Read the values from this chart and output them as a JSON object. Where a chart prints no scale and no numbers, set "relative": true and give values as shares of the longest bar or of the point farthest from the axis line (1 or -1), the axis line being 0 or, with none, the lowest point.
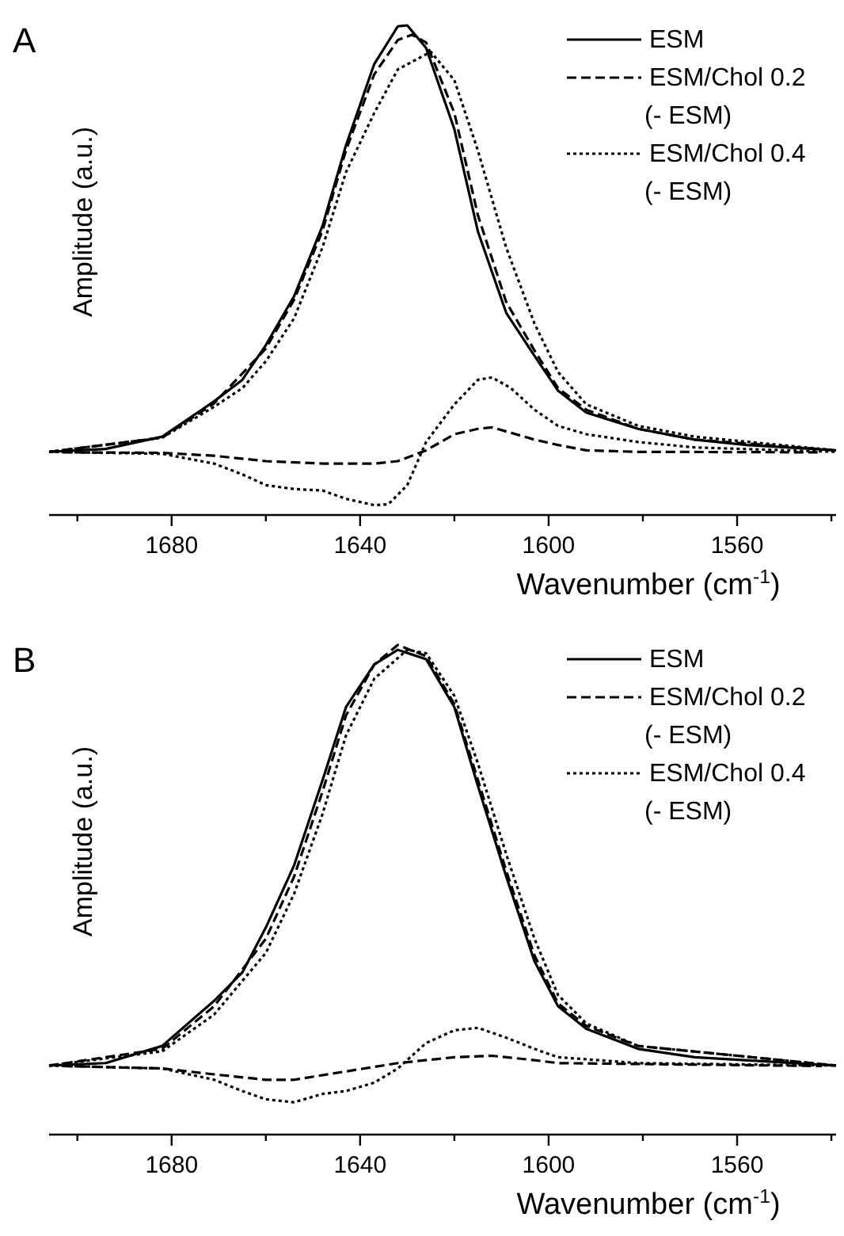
{
  "chart_data": [
    {
      "type": "line",
      "title": "A",
      "xlabel": "Wavenumber (cm$^{-1}$)",
      "ylabel": "Amplitude (a.u.)",
      "relative": true,
      "xlim": [
        1706,
        1539
      ],
      "xticks": [
        {
          "value": 1700,
          "label": null
        },
        1680,
        {
          "value": 1660,
          "label": null
        },
        1640,
        {
          "value": 1620,
          "label": null
        },
        1600,
        {
          "value": 1580,
          "label": null
        },
        1560,
        {
          "value": 1540,
          "label": null
        }
      ],
      "legend": "top right",
      "series": [
        {
          "name": "ESM",
          "color": "#000000",
          "line_style": "solid",
          "x": [
            1706,
            1694,
            1682,
            1671,
            1665,
            1660,
            1654,
            1648,
            1643,
            1637,
            1632,
            1630,
            1626,
            1620,
            1615,
            1609,
            1603,
            1598,
            1592,
            1581,
            1569,
            1558,
            1539
          ],
          "values": [
            0.129,
            0.135,
            0.16,
            0.232,
            0.276,
            0.347,
            0.447,
            0.59,
            0.755,
            0.921,
            0.998,
            1,
            0.954,
            0.788,
            0.579,
            0.413,
            0.325,
            0.254,
            0.209,
            0.176,
            0.154,
            0.143,
            0.132
          ]
        },
        {
          "name": "ESM/Chol 0.2\n(- ESM)",
          "color": "#000000",
          "line_style": "dashed",
          "x": [
            1706,
            1682,
            1671,
            1660,
            1654,
            1648,
            1643,
            1637,
            1632,
            1629,
            1626,
            1620,
            1615,
            1609,
            1603,
            1598,
            1592,
            1581,
            1569,
            1539
          ],
          "values": [
            0.129,
            0.158,
            0.228,
            0.34,
            0.44,
            0.58,
            0.745,
            0.9,
            0.97,
            0.981,
            0.965,
            0.821,
            0.612,
            0.435,
            0.336,
            0.259,
            0.215,
            0.176,
            0.154,
            0.132
          ]
        },
        {
          "name": "ESM/Chol 0.4\n(- ESM)",
          "color": "#000000",
          "line_style": "dotted",
          "x": [
            1706,
            1682,
            1671,
            1665,
            1660,
            1654,
            1648,
            1643,
            1637,
            1632,
            1625,
            1620,
            1615,
            1609,
            1603,
            1598,
            1592,
            1581,
            1569,
            1539
          ],
          "values": [
            0.129,
            0.158,
            0.221,
            0.259,
            0.314,
            0.402,
            0.546,
            0.7,
            0.821,
            0.91,
            0.946,
            0.888,
            0.744,
            0.546,
            0.391,
            0.292,
            0.226,
            0.182,
            0.16,
            0.132
          ]
        },
        {
          "color": "#000000",
          "line_style": "dashed",
          "x": [
            1703,
            1682,
            1671,
            1660,
            1648,
            1637,
            1632,
            1626,
            1620,
            1615,
            1612,
            1603,
            1598,
            1592,
            1581,
            1542
          ],
          "values": [
            0.128,
            0.127,
            0.121,
            0.11,
            0.105,
            0.105,
            0.11,
            0.132,
            0.165,
            0.176,
            0.179,
            0.154,
            0.143,
            0.132,
            0.129,
            0.128
          ]
        },
        {
          "color": "#000000",
          "line_style": "dotted",
          "x": [
            1706,
            1682,
            1671,
            1665,
            1660,
            1654,
            1648,
            1643,
            1637,
            1634,
            1630,
            1626,
            1620,
            1615,
            1612,
            1608,
            1603,
            1598,
            1592,
            1581,
            1569,
            1539
          ],
          "values": [
            0.129,
            0.125,
            0.105,
            0.083,
            0.061,
            0.053,
            0.05,
            0.033,
            0.02,
            0.022,
            0.061,
            0.149,
            0.226,
            0.276,
            0.281,
            0.259,
            0.215,
            0.182,
            0.165,
            0.149,
            0.138,
            0.129
          ]
        }
      ]
    },
    {
      "type": "line",
      "title": "B",
      "xlabel": "Wavenumber (cm$^{-1}$)",
      "ylabel": "Amplitude (a.u.)",
      "relative": true,
      "xlim": [
        1706,
        1539
      ],
      "xticks": [
        {
          "value": 1700,
          "label": null
        },
        1680,
        {
          "value": 1660,
          "label": null
        },
        1640,
        {
          "value": 1620,
          "label": null
        },
        1600,
        {
          "value": 1580,
          "label": null
        },
        1560,
        {
          "value": 1540,
          "label": null
        }
      ],
      "legend": "top right",
      "series": [
        {
          "name": "ESM",
          "color": "#000000",
          "line_style": "solid",
          "x": [
            1706,
            1694,
            1682,
            1671,
            1665,
            1660,
            1654,
            1648,
            1643,
            1637,
            1632,
            1626,
            1620,
            1615,
            1609,
            1603,
            1598,
            1592,
            1581,
            1569,
            1539
          ],
          "values": [
            0.141,
            0.146,
            0.181,
            0.273,
            0.331,
            0.423,
            0.55,
            0.723,
            0.873,
            0.96,
            0.99,
            0.971,
            0.873,
            0.712,
            0.527,
            0.354,
            0.262,
            0.216,
            0.175,
            0.158,
            0.141
          ]
        },
        {
          "name": "ESM/Chol 0.2\n(- ESM)",
          "color": "#000000",
          "line_style": "dashed",
          "x": [
            1706,
            1682,
            1671,
            1660,
            1654,
            1648,
            1643,
            1637,
            1632,
            1626,
            1620,
            1615,
            1609,
            1603,
            1598,
            1592,
            1581,
            1539
          ],
          "values": [
            0.141,
            0.175,
            0.262,
            0.4,
            0.527,
            0.7,
            0.856,
            0.96,
            1,
            0.977,
            0.879,
            0.724,
            0.539,
            0.366,
            0.268,
            0.222,
            0.181,
            0.141
          ]
        },
        {
          "name": "ESM/Chol 0.4\n(- ESM)",
          "color": "#000000",
          "line_style": "dotted",
          "x": [
            1706,
            1682,
            1671,
            1660,
            1654,
            1648,
            1643,
            1637,
            1630,
            1626,
            1620,
            1615,
            1609,
            1603,
            1598,
            1592,
            1581,
            1539
          ],
          "values": [
            0.141,
            0.17,
            0.245,
            0.371,
            0.492,
            0.654,
            0.815,
            0.931,
            0.99,
            0.983,
            0.896,
            0.758,
            0.573,
            0.4,
            0.285,
            0.227,
            0.181,
            0.141
          ]
        },
        {
          "color": "#000000",
          "line_style": "dashed",
          "x": [
            1703,
            1682,
            1671,
            1660,
            1654,
            1643,
            1632,
            1620,
            1612,
            1603,
            1598,
            1542
          ],
          "values": [
            0.14,
            0.135,
            0.123,
            0.112,
            0.112,
            0.129,
            0.146,
            0.158,
            0.161,
            0.152,
            0.146,
            0.14
          ]
        },
        {
          "color": "#000000",
          "line_style": "dotted",
          "x": [
            1706,
            1682,
            1671,
            1665,
            1660,
            1654,
            1648,
            1643,
            1637,
            1632,
            1626,
            1620,
            1615,
            1609,
            1603,
            1598,
            1581,
            1539
          ],
          "values": [
            0.141,
            0.135,
            0.112,
            0.089,
            0.072,
            0.066,
            0.083,
            0.089,
            0.106,
            0.135,
            0.187,
            0.213,
            0.218,
            0.198,
            0.175,
            0.158,
            0.146,
            0.141
          ]
        }
      ]
    }
  ]
}
